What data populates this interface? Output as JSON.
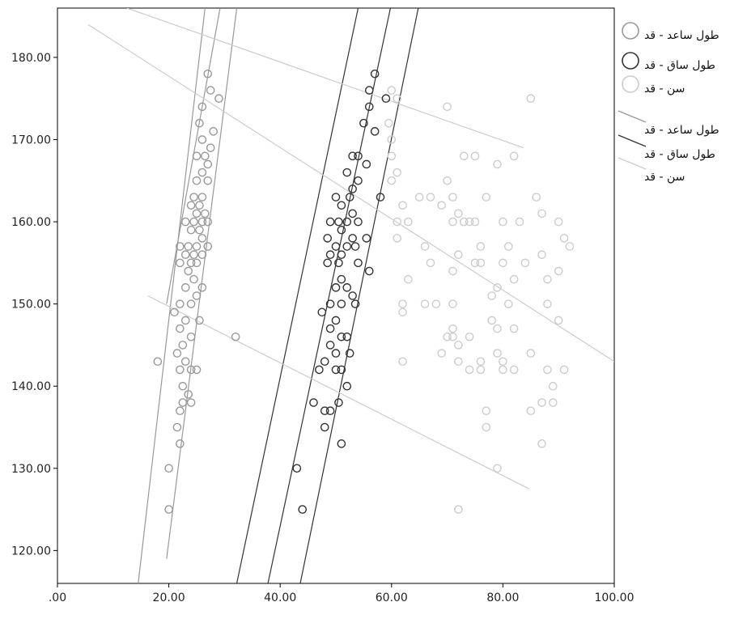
{
  "chart_data": {
    "type": "scatter",
    "title": "",
    "xlabel": "",
    "ylabel": "",
    "xlim": [
      0,
      100
    ],
    "ylim": [
      116,
      186
    ],
    "xticks": [
      ".00",
      "20.00",
      "40.00",
      "60.00",
      "80.00",
      "100.00"
    ],
    "yticks": [
      "120.00",
      "130.00",
      "140.00",
      "150.00",
      "160.00",
      "170.00",
      "180.00"
    ],
    "grid": false,
    "legend_position": "right",
    "series": [
      {
        "name": "طول ساعد - قد",
        "color": "#999999",
        "points": [
          [
            27,
            178
          ],
          [
            27.5,
            176
          ],
          [
            29,
            175
          ],
          [
            26,
            174
          ],
          [
            25.5,
            172
          ],
          [
            28,
            171
          ],
          [
            26,
            170
          ],
          [
            27.5,
            169
          ],
          [
            25,
            168
          ],
          [
            26.5,
            168
          ],
          [
            27,
            167
          ],
          [
            26,
            166
          ],
          [
            27,
            165
          ],
          [
            25,
            165
          ],
          [
            24.5,
            163
          ],
          [
            26,
            163
          ],
          [
            25.5,
            162
          ],
          [
            24,
            162
          ],
          [
            26.5,
            161
          ],
          [
            25,
            161
          ],
          [
            27,
            160
          ],
          [
            26,
            160
          ],
          [
            24.5,
            160
          ],
          [
            23,
            160
          ],
          [
            25.5,
            159
          ],
          [
            24,
            159
          ],
          [
            26,
            158
          ],
          [
            25,
            157
          ],
          [
            23.5,
            157
          ],
          [
            22,
            157
          ],
          [
            27,
            157
          ],
          [
            24.5,
            156
          ],
          [
            26,
            156
          ],
          [
            23,
            156
          ],
          [
            25,
            155
          ],
          [
            24,
            155
          ],
          [
            22,
            155
          ],
          [
            23.5,
            154
          ],
          [
            24.5,
            153
          ],
          [
            26,
            152
          ],
          [
            23,
            152
          ],
          [
            25,
            151
          ],
          [
            22,
            150
          ],
          [
            24,
            150
          ],
          [
            21,
            149
          ],
          [
            25.5,
            148
          ],
          [
            23,
            148
          ],
          [
            22,
            147
          ],
          [
            24,
            146
          ],
          [
            32,
            146
          ],
          [
            22.5,
            145
          ],
          [
            21.5,
            144
          ],
          [
            23,
            143
          ],
          [
            18,
            143
          ],
          [
            22,
            142
          ],
          [
            24,
            142
          ],
          [
            25,
            142
          ],
          [
            22.5,
            140
          ],
          [
            23.5,
            139
          ],
          [
            22.5,
            138
          ],
          [
            24,
            138
          ],
          [
            22,
            137
          ],
          [
            21.5,
            135
          ],
          [
            22,
            133
          ],
          [
            20,
            130
          ],
          [
            20,
            125
          ]
        ]
      },
      {
        "name": "طول ساق - قد",
        "color": "#333333",
        "points": [
          [
            57,
            178
          ],
          [
            56,
            176
          ],
          [
            59,
            175
          ],
          [
            56,
            174
          ],
          [
            55,
            172
          ],
          [
            57,
            171
          ],
          [
            53,
            168
          ],
          [
            54,
            168
          ],
          [
            55.5,
            167
          ],
          [
            52,
            166
          ],
          [
            54,
            165
          ],
          [
            53,
            164
          ],
          [
            58,
            163
          ],
          [
            50,
            163
          ],
          [
            52.5,
            163
          ],
          [
            51,
            162
          ],
          [
            53,
            161
          ],
          [
            49,
            160
          ],
          [
            50.5,
            160
          ],
          [
            52,
            160
          ],
          [
            54,
            160
          ],
          [
            51,
            159
          ],
          [
            55.5,
            158
          ],
          [
            53,
            158
          ],
          [
            48.5,
            158
          ],
          [
            50,
            157
          ],
          [
            52,
            157
          ],
          [
            53.5,
            157
          ],
          [
            49,
            156
          ],
          [
            51,
            156
          ],
          [
            54,
            155
          ],
          [
            50.5,
            155
          ],
          [
            48.5,
            155
          ],
          [
            56,
            154
          ],
          [
            51,
            153
          ],
          [
            52,
            152
          ],
          [
            50,
            152
          ],
          [
            53,
            151
          ],
          [
            51,
            150
          ],
          [
            49,
            150
          ],
          [
            53.5,
            150
          ],
          [
            47.5,
            149
          ],
          [
            50,
            148
          ],
          [
            49,
            147
          ],
          [
            51,
            146
          ],
          [
            52,
            146
          ],
          [
            49,
            145
          ],
          [
            50,
            144
          ],
          [
            52.5,
            144
          ],
          [
            48,
            143
          ],
          [
            47,
            142
          ],
          [
            50,
            142
          ],
          [
            51,
            142
          ],
          [
            52,
            140
          ],
          [
            50.5,
            138
          ],
          [
            46,
            138
          ],
          [
            49,
            137
          ],
          [
            48,
            137
          ],
          [
            48,
            135
          ],
          [
            51,
            133
          ],
          [
            43,
            130
          ],
          [
            44,
            125
          ]
        ]
      },
      {
        "name": "سن - قد",
        "color": "#cccccc",
        "points": [
          [
            60,
            176
          ],
          [
            61,
            175
          ],
          [
            70,
            174
          ],
          [
            85,
            175
          ],
          [
            59.5,
            172
          ],
          [
            60,
            170
          ],
          [
            60,
            168
          ],
          [
            73,
            168
          ],
          [
            75,
            168
          ],
          [
            79,
            167
          ],
          [
            82,
            168
          ],
          [
            61,
            166
          ],
          [
            60,
            165
          ],
          [
            70,
            165
          ],
          [
            65,
            163
          ],
          [
            67,
            163
          ],
          [
            71,
            163
          ],
          [
            77,
            163
          ],
          [
            86,
            163
          ],
          [
            62,
            162
          ],
          [
            69,
            162
          ],
          [
            72,
            161
          ],
          [
            73,
            160
          ],
          [
            61,
            160
          ],
          [
            75,
            160
          ],
          [
            80,
            160
          ],
          [
            63,
            160
          ],
          [
            71,
            160
          ],
          [
            74,
            160
          ],
          [
            83,
            160
          ],
          [
            87,
            161
          ],
          [
            90,
            160
          ],
          [
            61,
            158
          ],
          [
            66,
            157
          ],
          [
            76,
            157
          ],
          [
            81,
            157
          ],
          [
            91,
            158
          ],
          [
            92,
            157
          ],
          [
            72,
            156
          ],
          [
            87,
            156
          ],
          [
            67,
            155
          ],
          [
            80,
            155
          ],
          [
            75,
            155
          ],
          [
            76,
            155
          ],
          [
            84,
            155
          ],
          [
            71,
            154
          ],
          [
            90,
            154
          ],
          [
            63,
            153
          ],
          [
            82,
            153
          ],
          [
            79,
            152
          ],
          [
            88,
            153
          ],
          [
            78,
            151
          ],
          [
            68,
            150
          ],
          [
            66,
            150
          ],
          [
            71,
            150
          ],
          [
            62,
            150
          ],
          [
            81,
            150
          ],
          [
            88,
            150
          ],
          [
            62,
            149
          ],
          [
            78,
            148
          ],
          [
            90,
            148
          ],
          [
            71,
            147
          ],
          [
            79,
            147
          ],
          [
            82,
            147
          ],
          [
            70,
            146
          ],
          [
            71,
            146
          ],
          [
            74,
            146
          ],
          [
            72,
            145
          ],
          [
            79,
            144
          ],
          [
            85,
            144
          ],
          [
            69,
            144
          ],
          [
            72,
            143
          ],
          [
            76,
            143
          ],
          [
            80,
            143
          ],
          [
            62,
            143
          ],
          [
            74,
            142
          ],
          [
            76,
            142
          ],
          [
            80,
            142
          ],
          [
            82,
            142
          ],
          [
            88,
            142
          ],
          [
            91,
            142
          ],
          [
            89,
            140
          ],
          [
            87,
            138
          ],
          [
            89,
            138
          ],
          [
            77,
            137
          ],
          [
            85,
            137
          ],
          [
            77,
            135
          ],
          [
            87,
            133
          ],
          [
            79,
            130
          ],
          [
            72,
            125
          ]
        ]
      }
    ],
    "fit_lines": [
      {
        "name": "طول ساعد - قد",
        "color": "#999999",
        "line": [
          [
            19.6,
            150
          ],
          [
            29.2,
            186
          ]
        ],
        "ci_low": [
          [
            14.5,
            116
          ],
          [
            26.5,
            186
          ]
        ],
        "ci_high": [
          [
            19.6,
            119
          ],
          [
            32.2,
            186
          ]
        ]
      },
      {
        "name": "طول ساق - قد",
        "color": "#333333",
        "line": [
          [
            37.8,
            116
          ],
          [
            59.8,
            186
          ]
        ],
        "ci_low": [
          [
            32.2,
            116
          ],
          [
            54,
            186
          ]
        ],
        "ci_high": [
          [
            43.6,
            116
          ],
          [
            64.8,
            186
          ]
        ]
      },
      {
        "name": "سن - قد",
        "color": "#cccccc",
        "line": [
          [
            5.5,
            184
          ],
          [
            100,
            143
          ]
        ],
        "ci_low": [
          [
            16.2,
            151
          ],
          [
            84.7,
            127.5
          ]
        ],
        "ci_high": [
          [
            12.5,
            186
          ],
          [
            83.7,
            169
          ]
        ]
      }
    ]
  },
  "legend": {
    "points": [
      {
        "label": "طول ساعد - قد",
        "color": "#999999"
      },
      {
        "label": "طول ساق - قد",
        "color": "#333333"
      },
      {
        "label": "سن - قد",
        "color": "#cccccc"
      }
    ],
    "lines": [
      {
        "label": "طول ساعد - قد",
        "color": "#999999"
      },
      {
        "label": "طول ساق - قد",
        "color": "#333333"
      },
      {
        "label": "سن - قد",
        "color": "#cccccc"
      }
    ]
  }
}
